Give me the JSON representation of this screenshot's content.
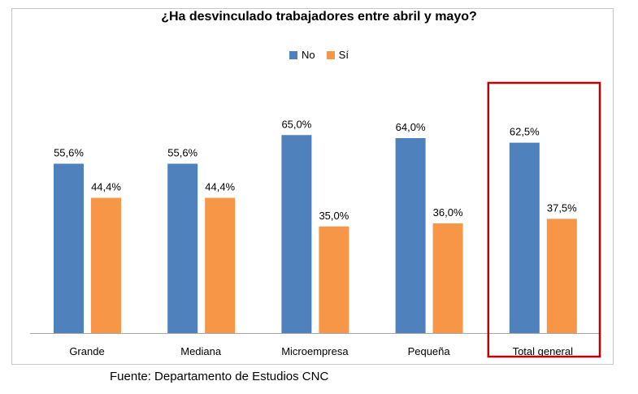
{
  "chart_data": {
    "type": "bar",
    "title": "¿Ha desvinculado trabajadores entre abril y mayo?",
    "categories": [
      "Grande",
      "Mediana",
      "Microempresa",
      "Pequeña",
      "Total general"
    ],
    "series": [
      {
        "name": "No",
        "color": "#4f81bd",
        "values": [
          55.6,
          55.6,
          65.0,
          64.0,
          62.5
        ],
        "labels": [
          "55,6%",
          "55,6%",
          "65,0%",
          "64,0%",
          "62,5%"
        ]
      },
      {
        "name": "Sí",
        "color": "#f79646",
        "values": [
          44.4,
          44.4,
          35.0,
          36.0,
          37.5
        ],
        "labels": [
          "44,4%",
          "44,4%",
          "35,0%",
          "36,0%",
          "37,5%"
        ]
      }
    ],
    "ylim": [
      0,
      100
    ],
    "grid": false,
    "legend": "top",
    "highlight": {
      "category": "Total general",
      "color": "#c00000"
    }
  },
  "source": "Fuente: Departamento de Estudios CNC"
}
